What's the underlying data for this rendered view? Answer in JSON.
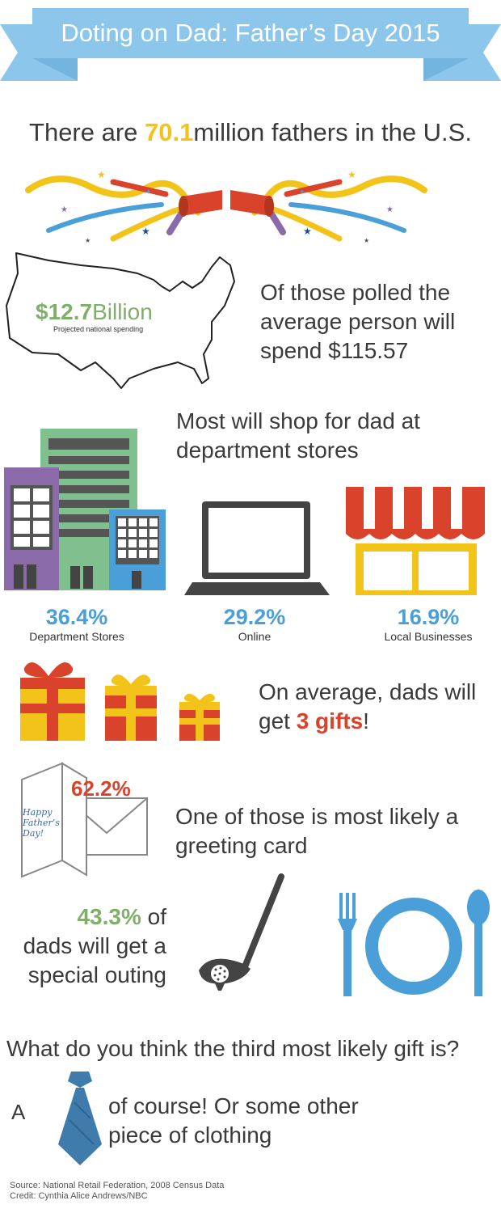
{
  "header": {
    "title": "Doting on Dad: Father’s Day 2015"
  },
  "fathers": {
    "prefix": "There are ",
    "number": "70.1",
    "suffix": "million fathers in the U.S."
  },
  "spending": {
    "amount": "$12.7",
    "amount_unit": "Billion",
    "amount_caption": "Projected national spending",
    "line1": "Of those polled the",
    "line2": "average person will",
    "line3": "spend $115.57"
  },
  "stores": {
    "heading_line1": "Most will shop for dad at",
    "heading_line2": "department stores",
    "items": [
      {
        "value": "36.4%",
        "label": "Department Stores"
      },
      {
        "value": "29.2%",
        "label": "Online"
      },
      {
        "value": "16.9%",
        "label": "Local Businesses"
      }
    ]
  },
  "gifts": {
    "line1": "On average, dads will",
    "line2_prefix": "get ",
    "line2_highlight": "3 gifts",
    "line2_suffix": "!"
  },
  "card": {
    "percent": "62.2%",
    "card_text_1": "Happy",
    "card_text_2": "Father’s",
    "card_text_3": "Day!",
    "line1": "One of those is most likely a",
    "line2": "greeting card"
  },
  "outing": {
    "percent": "43.3%",
    "line1_suffix": " of",
    "line2": "dads will get a",
    "line3": "special outing"
  },
  "third_gift": {
    "question": "What do you think the third most likely gift is?",
    "prefix": "A",
    "line1": "of course! Or some other",
    "line2": "piece of clothing"
  },
  "footer": {
    "source": "Source: National Retail Federation, 2008 Census Data",
    "credit": "Credit: Cynthia Alice Andrews/NBC"
  },
  "colors": {
    "banner_blue": "#8cc6ea",
    "banner_fold": "#5fa8d6",
    "yellow": "#f2c318",
    "red": "#d9432b",
    "green": "#7fb069",
    "blue": "#4a9fd8",
    "purple": "#8a6aa8"
  }
}
